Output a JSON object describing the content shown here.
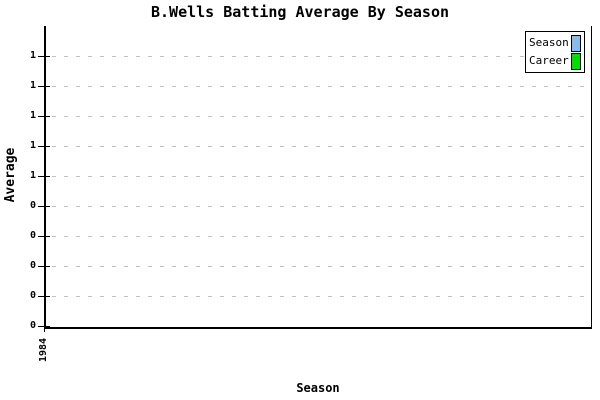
{
  "title": "B.Wells Batting Average By Season",
  "axes": {
    "y_label": "Average",
    "x_label": "Season",
    "y_tick_labels": [
      "1",
      "1",
      "1",
      "1",
      "1",
      "0",
      "0",
      "0",
      "0",
      "0"
    ],
    "x_tick_labels": [
      "1984"
    ]
  },
  "legend": {
    "items": [
      {
        "label": "Season",
        "color": "#88BBE8"
      },
      {
        "label": "Career",
        "color": "#00DD00"
      }
    ]
  },
  "colors": {
    "background": "#FFFFFF",
    "axis": "#000000",
    "grid": "#C0C0C0",
    "text": "#000000"
  },
  "chart_data": {
    "type": "bar",
    "title": "B.Wells Batting Average By Season",
    "xlabel": "Season",
    "ylabel": "Average",
    "categories": [
      "1984"
    ],
    "series": [
      {
        "name": "Season",
        "color": "#88BBE8",
        "values": [
          0
        ]
      },
      {
        "name": "Career",
        "color": "#00DD00",
        "values": [
          0
        ]
      }
    ],
    "bars_visible": false,
    "y_axis": {
      "tick_labels_top_to_bottom": [
        "1",
        "1",
        "1",
        "1",
        "1",
        "0",
        "0",
        "0",
        "0",
        "0"
      ],
      "grid": "horizontal-dashed"
    },
    "legend_position": "top-right"
  }
}
